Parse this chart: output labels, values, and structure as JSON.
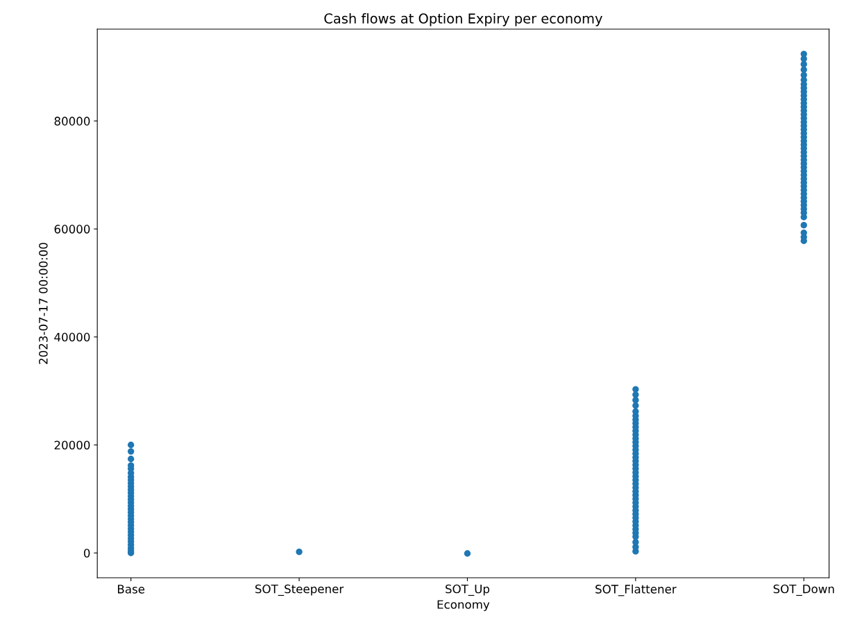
{
  "chart_data": {
    "type": "scatter",
    "title": "Cash flows at Option Expiry per economy",
    "xlabel": "Economy",
    "ylabel": "2023-07-17 00:00:00",
    "categories": [
      "Base",
      "SOT_Steepener",
      "SOT_Up",
      "SOT_Flattener",
      "SOT_Down"
    ],
    "ylim": [
      -4600,
      97000
    ],
    "yticks": [
      0,
      20000,
      40000,
      60000,
      80000
    ],
    "grid": false,
    "legend": false,
    "marker": "circle",
    "series": [
      {
        "color": "#1f77b4",
        "x": [
          "Base",
          "Base",
          "Base",
          "Base",
          "Base",
          "Base",
          "Base",
          "Base",
          "Base",
          "Base",
          "Base",
          "Base",
          "Base",
          "Base",
          "Base",
          "Base",
          "Base",
          "Base",
          "Base",
          "Base",
          "Base",
          "Base",
          "Base",
          "Base",
          "Base",
          "Base",
          "Base",
          "Base",
          "Base",
          "Base",
          "Base",
          "SOT_Steepener",
          "SOT_Up"
        ],
        "values": [
          0,
          400,
          900,
          1500,
          2100,
          2700,
          3300,
          3900,
          4500,
          5100,
          5700,
          6300,
          6900,
          7500,
          8100,
          8700,
          9300,
          9900,
          10500,
          11100,
          11700,
          12300,
          12900,
          13500,
          14100,
          14800,
          15600,
          16200,
          17400,
          18800,
          20000,
          200,
          -100
        ]
      },
      {
        "color": "#1f77b4",
        "x": [
          "SOT_Flattener",
          "SOT_Flattener",
          "SOT_Flattener",
          "SOT_Flattener",
          "SOT_Flattener",
          "SOT_Flattener",
          "SOT_Flattener",
          "SOT_Flattener",
          "SOT_Flattener",
          "SOT_Flattener",
          "SOT_Flattener",
          "SOT_Flattener",
          "SOT_Flattener",
          "SOT_Flattener",
          "SOT_Flattener",
          "SOT_Flattener",
          "SOT_Flattener",
          "SOT_Flattener",
          "SOT_Flattener",
          "SOT_Flattener",
          "SOT_Flattener",
          "SOT_Flattener",
          "SOT_Flattener",
          "SOT_Flattener",
          "SOT_Flattener",
          "SOT_Flattener",
          "SOT_Flattener",
          "SOT_Flattener",
          "SOT_Flattener",
          "SOT_Flattener",
          "SOT_Flattener",
          "SOT_Flattener",
          "SOT_Flattener",
          "SOT_Flattener",
          "SOT_Flattener",
          "SOT_Flattener",
          "SOT_Flattener",
          "SOT_Flattener",
          "SOT_Flattener",
          "SOT_Flattener",
          "SOT_Flattener"
        ],
        "values": [
          300,
          1100,
          2000,
          3000,
          3700,
          4400,
          5100,
          5800,
          6500,
          7200,
          7900,
          8600,
          9300,
          10000,
          10700,
          11400,
          12100,
          12800,
          13500,
          14200,
          14900,
          15600,
          16300,
          17000,
          17700,
          18400,
          19100,
          19800,
          20500,
          21200,
          21900,
          22600,
          23300,
          24000,
          24700,
          25400,
          26200,
          27300,
          28300,
          29300,
          30300
        ]
      },
      {
        "color": "#1f77b4",
        "x": [
          "SOT_Down",
          "SOT_Down",
          "SOT_Down",
          "SOT_Down",
          "SOT_Down",
          "SOT_Down",
          "SOT_Down",
          "SOT_Down",
          "SOT_Down",
          "SOT_Down",
          "SOT_Down",
          "SOT_Down",
          "SOT_Down",
          "SOT_Down",
          "SOT_Down",
          "SOT_Down",
          "SOT_Down",
          "SOT_Down",
          "SOT_Down",
          "SOT_Down",
          "SOT_Down",
          "SOT_Down",
          "SOT_Down",
          "SOT_Down",
          "SOT_Down",
          "SOT_Down",
          "SOT_Down",
          "SOT_Down",
          "SOT_Down",
          "SOT_Down",
          "SOT_Down",
          "SOT_Down",
          "SOT_Down",
          "SOT_Down",
          "SOT_Down",
          "SOT_Down",
          "SOT_Down",
          "SOT_Down",
          "SOT_Down",
          "SOT_Down",
          "SOT_Down",
          "SOT_Down",
          "SOT_Down",
          "SOT_Down",
          "SOT_Down",
          "SOT_Down"
        ],
        "values": [
          57800,
          58500,
          59300,
          60700,
          62200,
          63000,
          63700,
          64400,
          65100,
          65800,
          66500,
          67200,
          67900,
          68600,
          69300,
          70000,
          70700,
          71400,
          72100,
          72800,
          73500,
          74200,
          74900,
          75600,
          76300,
          77000,
          77700,
          78400,
          79100,
          79800,
          80500,
          81200,
          81900,
          82600,
          83300,
          84000,
          84700,
          85400,
          86100,
          86800,
          87600,
          88500,
          89500,
          90500,
          91500,
          92400
        ]
      }
    ]
  }
}
